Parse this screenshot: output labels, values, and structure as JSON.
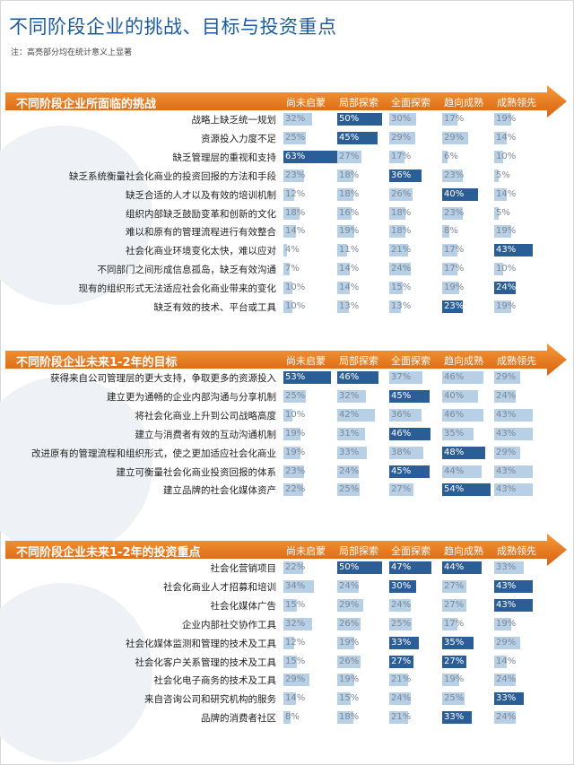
{
  "title": "不同阶段企业的挑战、目标与投资重点",
  "note": "注：高亮部分均在统计意义上显著",
  "stages": [
    "尚未启蒙",
    "局部探索",
    "全面探索",
    "趋向成熟",
    "成熟领先"
  ],
  "colors": {
    "orange": "#f07d1a",
    "orange_dark": "#d8620d",
    "bar_light": "#b8d0e6",
    "bar_dark": "#2b5d96"
  },
  "chart_data": [
    {
      "type": "table",
      "title": "不同阶段企业所面临的挑战",
      "columns": [
        "尚未启蒙",
        "局部探索",
        "全面探索",
        "趋向成熟",
        "成熟领先"
      ],
      "rows": [
        {
          "label": "战略上缺乏统一规划",
          "values": [
            32,
            50,
            30,
            17,
            19
          ],
          "highlight": [
            false,
            true,
            false,
            false,
            false
          ]
        },
        {
          "label": "资源投入力度不足",
          "values": [
            25,
            45,
            29,
            29,
            14
          ],
          "highlight": [
            false,
            true,
            false,
            false,
            false
          ]
        },
        {
          "label": "缺乏管理层的重视和支持",
          "values": [
            63,
            27,
            17,
            6,
            10
          ],
          "highlight": [
            true,
            false,
            false,
            false,
            false
          ]
        },
        {
          "label": "缺乏系统衡量社会化商业的投资回报的方法和手段",
          "values": [
            23,
            18,
            36,
            23,
            5
          ],
          "highlight": [
            false,
            false,
            true,
            false,
            false
          ]
        },
        {
          "label": "缺乏合适的人才以及有效的培训机制",
          "values": [
            12,
            18,
            26,
            40,
            14
          ],
          "highlight": [
            false,
            false,
            false,
            true,
            false
          ]
        },
        {
          "label": "组织内部缺乏鼓励变革和创新的文化",
          "values": [
            18,
            16,
            18,
            23,
            5
          ],
          "highlight": [
            false,
            false,
            false,
            false,
            false
          ]
        },
        {
          "label": "难以和原有的管理流程进行有效整合",
          "values": [
            14,
            19,
            18,
            8,
            19
          ],
          "highlight": [
            false,
            false,
            false,
            false,
            false
          ]
        },
        {
          "label": "社会化商业环境变化太快，难以应对",
          "values": [
            4,
            11,
            21,
            17,
            43
          ],
          "highlight": [
            false,
            false,
            false,
            false,
            true
          ]
        },
        {
          "label": "不同部门之间形成信息孤岛，缺乏有效沟通",
          "values": [
            7,
            14,
            24,
            17,
            10
          ],
          "highlight": [
            false,
            false,
            false,
            false,
            false
          ]
        },
        {
          "label": "现有的组织形式无法适应社会化商业带来的变化",
          "values": [
            10,
            14,
            15,
            19,
            24
          ],
          "highlight": [
            false,
            false,
            false,
            false,
            true
          ]
        },
        {
          "label": "缺乏有效的技术、平台或工具",
          "values": [
            10,
            13,
            13,
            23,
            19
          ],
          "highlight": [
            false,
            false,
            false,
            true,
            false
          ]
        }
      ]
    },
    {
      "type": "table",
      "title": "不同阶段企业未来1-2年的目标",
      "columns": [
        "尚未启蒙",
        "局部探索",
        "全面探索",
        "趋向成熟",
        "成熟领先"
      ],
      "rows": [
        {
          "label": "获得来自公司管理层的更大支持，争取更多的资源投入",
          "values": [
            53,
            46,
            37,
            46,
            29
          ],
          "highlight": [
            true,
            true,
            false,
            false,
            false
          ]
        },
        {
          "label": "建立更为通畅的企业内部沟通与分享机制",
          "values": [
            25,
            32,
            45,
            40,
            24
          ],
          "highlight": [
            false,
            false,
            true,
            false,
            false
          ]
        },
        {
          "label": "将社会化商业上升到公司战略高度",
          "values": [
            10,
            42,
            36,
            46,
            43
          ],
          "highlight": [
            false,
            false,
            false,
            false,
            false
          ]
        },
        {
          "label": "建立与消费者有效的互动沟通机制",
          "values": [
            19,
            31,
            46,
            35,
            43
          ],
          "highlight": [
            false,
            false,
            true,
            false,
            false
          ]
        },
        {
          "label": "改进原有的管理流程和组织形式，使之更加适应社会化商业",
          "values": [
            19,
            33,
            38,
            48,
            29
          ],
          "highlight": [
            false,
            false,
            false,
            true,
            false
          ]
        },
        {
          "label": "建立可衡量社会化商业投资回报的体系",
          "values": [
            23,
            24,
            45,
            44,
            43
          ],
          "highlight": [
            false,
            false,
            true,
            false,
            false
          ]
        },
        {
          "label": "建立品牌的社会化媒体资产",
          "values": [
            22,
            25,
            27,
            54,
            43
          ],
          "highlight": [
            false,
            false,
            false,
            true,
            false
          ]
        }
      ]
    },
    {
      "type": "table",
      "title": "不同阶段企业未来1-2年的投资重点",
      "columns": [
        "尚未启蒙",
        "局部探索",
        "全面探索",
        "趋向成熟",
        "成熟领先"
      ],
      "rows": [
        {
          "label": "社会化营销项目",
          "values": [
            22,
            50,
            47,
            44,
            33
          ],
          "highlight": [
            false,
            true,
            true,
            true,
            false
          ]
        },
        {
          "label": "社会化商业人才招募和培训",
          "values": [
            34,
            24,
            30,
            27,
            43
          ],
          "highlight": [
            false,
            false,
            true,
            false,
            true
          ]
        },
        {
          "label": "社会化媒体广告",
          "values": [
            15,
            29,
            24,
            27,
            43
          ],
          "highlight": [
            false,
            false,
            false,
            false,
            true
          ]
        },
        {
          "label": "企业内部社交协作工具",
          "values": [
            32,
            26,
            25,
            17,
            19
          ],
          "highlight": [
            false,
            false,
            false,
            false,
            false
          ]
        },
        {
          "label": "社会化媒体监测和管理的技术及工具",
          "values": [
            12,
            19,
            33,
            35,
            29
          ],
          "highlight": [
            false,
            false,
            true,
            true,
            false
          ]
        },
        {
          "label": "社会化客户关系管理的技术及工具",
          "values": [
            15,
            26,
            27,
            27,
            14
          ],
          "highlight": [
            false,
            false,
            true,
            true,
            false
          ]
        },
        {
          "label": "社会化电子商务的技术及工具",
          "values": [
            29,
            19,
            21,
            19,
            24
          ],
          "highlight": [
            false,
            false,
            false,
            false,
            false
          ]
        },
        {
          "label": "来自咨询公司和研究机构的服务",
          "values": [
            14,
            15,
            24,
            25,
            33
          ],
          "highlight": [
            false,
            false,
            false,
            false,
            true
          ]
        },
        {
          "label": "品牌的消费者社区",
          "values": [
            8,
            18,
            21,
            33,
            24
          ],
          "highlight": [
            false,
            false,
            false,
            true,
            false
          ]
        }
      ]
    }
  ]
}
